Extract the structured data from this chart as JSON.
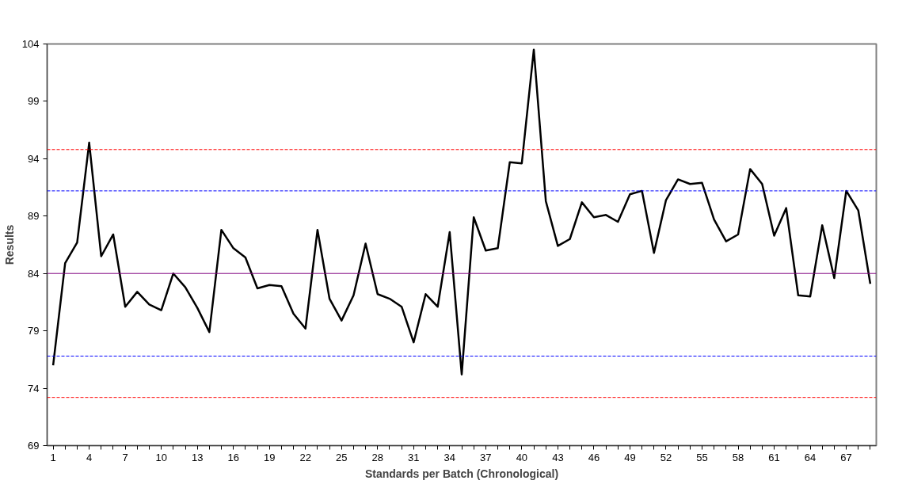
{
  "chart_data": {
    "type": "line",
    "xlabel": "Standards per Batch (Chronological)",
    "ylabel": "Results",
    "categories": [
      "1",
      null,
      null,
      "4",
      null,
      null,
      "7",
      null,
      null,
      "10",
      null,
      null,
      "13",
      null,
      null,
      "16",
      null,
      null,
      "19",
      null,
      null,
      "22",
      null,
      null,
      "25",
      null,
      null,
      "28",
      null,
      null,
      "31",
      null,
      null,
      "34",
      null,
      null,
      "37",
      null,
      null,
      "40",
      null,
      null,
      "43",
      null,
      null,
      "46",
      null,
      null,
      "49",
      null,
      null,
      "52",
      null,
      null,
      "55",
      null,
      null,
      "58",
      null,
      null,
      "61",
      null,
      null,
      "64",
      null,
      null,
      "67",
      null,
      null
    ],
    "series": [
      {
        "color": "#000000",
        "values": [
          76.0,
          84.9,
          86.7,
          95.4,
          85.5,
          87.4,
          81.1,
          82.4,
          81.3,
          80.8,
          84.0,
          82.8,
          81.0,
          78.9,
          87.8,
          86.2,
          85.4,
          82.7,
          83.0,
          82.9,
          80.5,
          79.2,
          87.8,
          81.8,
          79.9,
          82.1,
          86.6,
          82.2,
          81.8,
          81.1,
          78.0,
          82.2,
          81.1,
          87.6,
          75.2,
          88.9,
          86.0,
          86.2,
          93.7,
          93.6,
          103.5,
          90.3,
          86.4,
          87.0,
          90.2,
          88.9,
          89.1,
          88.5,
          90.9,
          91.2,
          85.8,
          90.4,
          92.2,
          91.8,
          91.9,
          88.7,
          86.8,
          87.4,
          93.1,
          91.8,
          87.3,
          89.7,
          82.1,
          82.0,
          88.2,
          83.6,
          91.2,
          89.5,
          83.1
        ]
      }
    ],
    "ylim": [
      69,
      104
    ],
    "yticks": [
      69,
      74,
      79,
      84,
      89,
      94,
      99,
      104
    ],
    "ref_lines": [
      {
        "axis": "y",
        "value": 94.8,
        "color": "#ff0000",
        "line_style": "dashed"
      },
      {
        "axis": "y",
        "value": 91.2,
        "color": "#0000ff",
        "line_style": "dashed"
      },
      {
        "axis": "y",
        "value": 84.0,
        "color": "#800080",
        "line_style": "solid"
      },
      {
        "axis": "y",
        "value": 76.8,
        "color": "#0000ff",
        "line_style": "dashed"
      },
      {
        "axis": "y",
        "value": 73.2,
        "color": "#ff0000",
        "line_style": "dashed"
      }
    ],
    "grid": false,
    "marker": "none",
    "line_style": "solid"
  }
}
